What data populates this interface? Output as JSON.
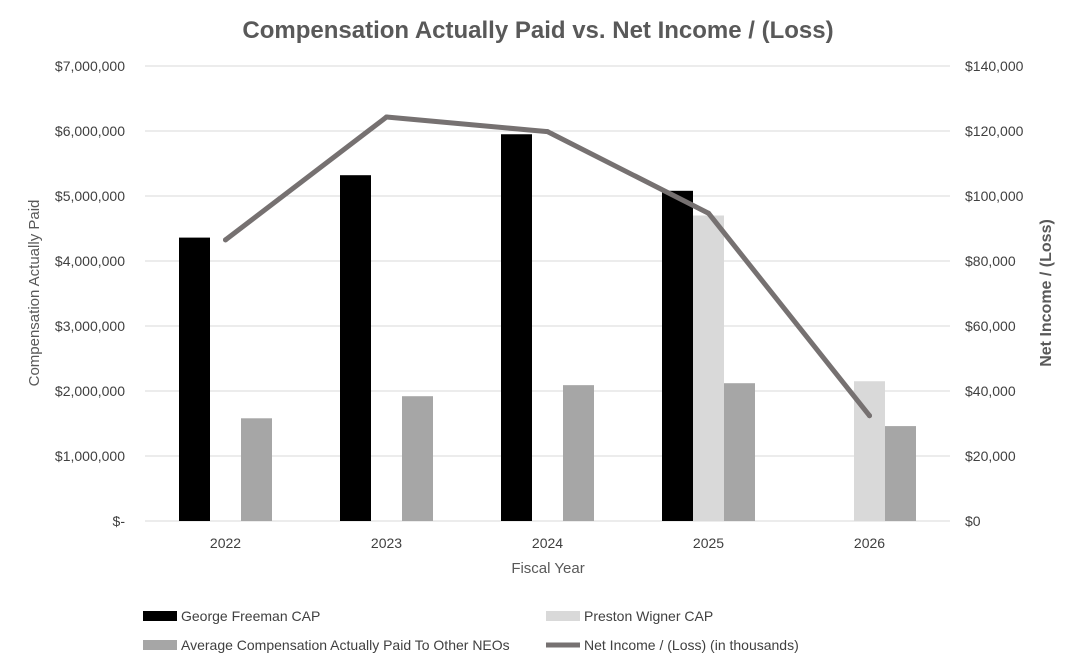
{
  "chart_data": {
    "type": "bar",
    "title": "Compensation Actually Paid vs. Net Income / (Loss)",
    "xlabel": "Fiscal Year",
    "ylabel": "Compensation Actually Paid",
    "y2label": "Net Income / (Loss)",
    "categories": [
      "2022",
      "2023",
      "2024",
      "2025",
      "2026"
    ],
    "ylim": [
      0,
      7000000
    ],
    "y2lim": [
      0,
      140000
    ],
    "y_ticks": [
      "$-",
      "$1,000,000",
      "$2,000,000",
      "$3,000,000",
      "$4,000,000",
      "$5,000,000",
      "$6,000,000",
      "$7,000,000"
    ],
    "y2_ticks": [
      "$0",
      "$20,000",
      "$40,000",
      "$60,000",
      "$80,000",
      "$100,000",
      "$120,000",
      "$140,000"
    ],
    "grid": true,
    "legend_position": "bottom",
    "series": [
      {
        "name": "George Freeman CAP",
        "type": "bar",
        "axis": "left",
        "color": "#000000",
        "values": [
          4360000,
          5320000,
          5950000,
          5080000,
          null
        ]
      },
      {
        "name": "Preston Wigner CAP",
        "type": "bar",
        "axis": "left",
        "color": "#d9d9d9",
        "values": [
          null,
          null,
          null,
          4700000,
          2150000
        ]
      },
      {
        "name": "Average Compensation Actually Paid To Other NEOs",
        "type": "bar",
        "axis": "left",
        "color": "#a6a6a6",
        "values": [
          1580000,
          1920000,
          2090000,
          2120000,
          1460000
        ]
      },
      {
        "name": "Net Income / (Loss) (in thousands)",
        "type": "line",
        "axis": "right",
        "color": "#767171",
        "values": [
          86500,
          124300,
          119800,
          94700,
          32400
        ]
      }
    ]
  }
}
